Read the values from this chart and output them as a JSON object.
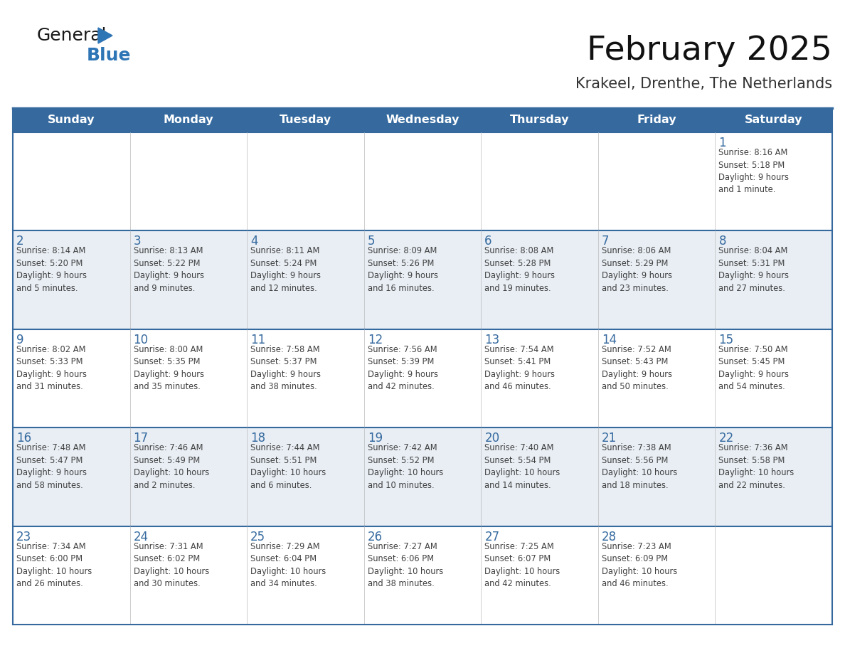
{
  "title": "February 2025",
  "subtitle": "Krakeel, Drenthe, The Netherlands",
  "days_of_week": [
    "Sunday",
    "Monday",
    "Tuesday",
    "Wednesday",
    "Thursday",
    "Friday",
    "Saturday"
  ],
  "header_bg": "#366A9F",
  "header_text": "#FFFFFF",
  "row0_bg": "#FFFFFF",
  "row1_bg": "#E8EEF4",
  "row2_bg": "#FFFFFF",
  "row3_bg": "#E8EEF4",
  "row4_bg": "#FFFFFF",
  "border_color": "#366A9F",
  "day_number_color": "#366A9F",
  "text_color": "#404040",
  "line_color": "#366A9F",
  "calendar_data": [
    [
      null,
      null,
      null,
      null,
      null,
      null,
      {
        "day": 1,
        "sunrise": "8:16 AM",
        "sunset": "5:18 PM",
        "daylight": "9 hours\nand 1 minute."
      }
    ],
    [
      {
        "day": 2,
        "sunrise": "8:14 AM",
        "sunset": "5:20 PM",
        "daylight": "9 hours\nand 5 minutes."
      },
      {
        "day": 3,
        "sunrise": "8:13 AM",
        "sunset": "5:22 PM",
        "daylight": "9 hours\nand 9 minutes."
      },
      {
        "day": 4,
        "sunrise": "8:11 AM",
        "sunset": "5:24 PM",
        "daylight": "9 hours\nand 12 minutes."
      },
      {
        "day": 5,
        "sunrise": "8:09 AM",
        "sunset": "5:26 PM",
        "daylight": "9 hours\nand 16 minutes."
      },
      {
        "day": 6,
        "sunrise": "8:08 AM",
        "sunset": "5:28 PM",
        "daylight": "9 hours\nand 19 minutes."
      },
      {
        "day": 7,
        "sunrise": "8:06 AM",
        "sunset": "5:29 PM",
        "daylight": "9 hours\nand 23 minutes."
      },
      {
        "day": 8,
        "sunrise": "8:04 AM",
        "sunset": "5:31 PM",
        "daylight": "9 hours\nand 27 minutes."
      }
    ],
    [
      {
        "day": 9,
        "sunrise": "8:02 AM",
        "sunset": "5:33 PM",
        "daylight": "9 hours\nand 31 minutes."
      },
      {
        "day": 10,
        "sunrise": "8:00 AM",
        "sunset": "5:35 PM",
        "daylight": "9 hours\nand 35 minutes."
      },
      {
        "day": 11,
        "sunrise": "7:58 AM",
        "sunset": "5:37 PM",
        "daylight": "9 hours\nand 38 minutes."
      },
      {
        "day": 12,
        "sunrise": "7:56 AM",
        "sunset": "5:39 PM",
        "daylight": "9 hours\nand 42 minutes."
      },
      {
        "day": 13,
        "sunrise": "7:54 AM",
        "sunset": "5:41 PM",
        "daylight": "9 hours\nand 46 minutes."
      },
      {
        "day": 14,
        "sunrise": "7:52 AM",
        "sunset": "5:43 PM",
        "daylight": "9 hours\nand 50 minutes."
      },
      {
        "day": 15,
        "sunrise": "7:50 AM",
        "sunset": "5:45 PM",
        "daylight": "9 hours\nand 54 minutes."
      }
    ],
    [
      {
        "day": 16,
        "sunrise": "7:48 AM",
        "sunset": "5:47 PM",
        "daylight": "9 hours\nand 58 minutes."
      },
      {
        "day": 17,
        "sunrise": "7:46 AM",
        "sunset": "5:49 PM",
        "daylight": "10 hours\nand 2 minutes."
      },
      {
        "day": 18,
        "sunrise": "7:44 AM",
        "sunset": "5:51 PM",
        "daylight": "10 hours\nand 6 minutes."
      },
      {
        "day": 19,
        "sunrise": "7:42 AM",
        "sunset": "5:52 PM",
        "daylight": "10 hours\nand 10 minutes."
      },
      {
        "day": 20,
        "sunrise": "7:40 AM",
        "sunset": "5:54 PM",
        "daylight": "10 hours\nand 14 minutes."
      },
      {
        "day": 21,
        "sunrise": "7:38 AM",
        "sunset": "5:56 PM",
        "daylight": "10 hours\nand 18 minutes."
      },
      {
        "day": 22,
        "sunrise": "7:36 AM",
        "sunset": "5:58 PM",
        "daylight": "10 hours\nand 22 minutes."
      }
    ],
    [
      {
        "day": 23,
        "sunrise": "7:34 AM",
        "sunset": "6:00 PM",
        "daylight": "10 hours\nand 26 minutes."
      },
      {
        "day": 24,
        "sunrise": "7:31 AM",
        "sunset": "6:02 PM",
        "daylight": "10 hours\nand 30 minutes."
      },
      {
        "day": 25,
        "sunrise": "7:29 AM",
        "sunset": "6:04 PM",
        "daylight": "10 hours\nand 34 minutes."
      },
      {
        "day": 26,
        "sunrise": "7:27 AM",
        "sunset": "6:06 PM",
        "daylight": "10 hours\nand 38 minutes."
      },
      {
        "day": 27,
        "sunrise": "7:25 AM",
        "sunset": "6:07 PM",
        "daylight": "10 hours\nand 42 minutes."
      },
      {
        "day": 28,
        "sunrise": "7:23 AM",
        "sunset": "6:09 PM",
        "daylight": "10 hours\nand 46 minutes."
      },
      null
    ]
  ],
  "logo_general_color": "#1a1a1a",
  "logo_blue_color": "#2E75B6",
  "logo_triangle_color": "#2E75B6",
  "fig_width": 11.88,
  "fig_height": 9.18,
  "dpi": 100
}
